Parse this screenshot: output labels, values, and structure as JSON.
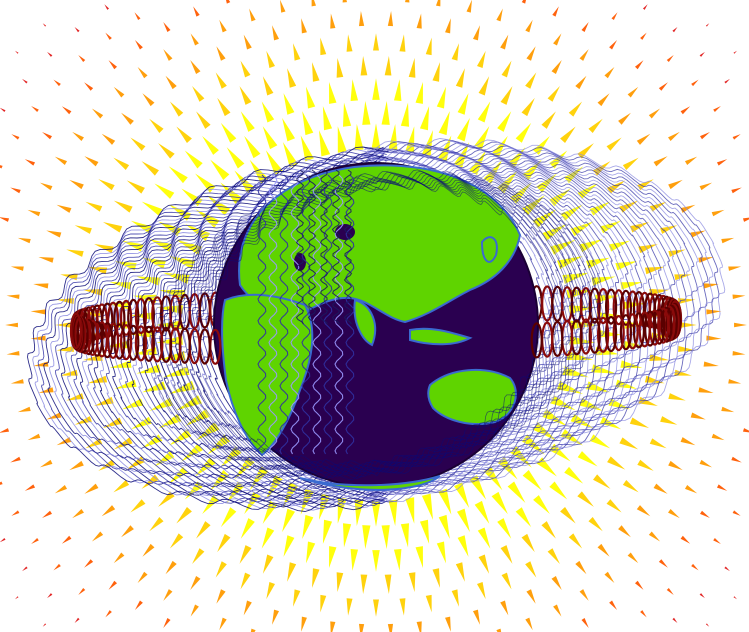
{
  "scene": {
    "background": "#ffffff",
    "planet": {
      "ocean_color": "#2a0050",
      "land_color": "#5fd400",
      "coast_color": "#3a6ad0",
      "limb_color": "#1a0035"
    },
    "field_lines": {
      "outer_color": "#0a0a78",
      "inner_color": "#8c8ce0",
      "mid_color": "#3a3aa8"
    },
    "ring_current": {
      "color": "#8a0a0a",
      "dark_color": "#5a0000"
    },
    "vector_field": {
      "colors": [
        "#ffff00",
        "#ffd000",
        "#ff9a00",
        "#ff5a00",
        "#e01a1a"
      ]
    }
  }
}
